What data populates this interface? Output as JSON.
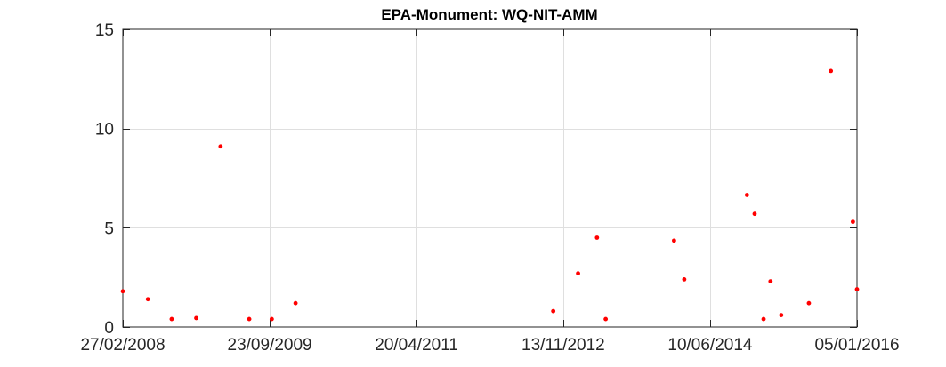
{
  "chart_data": {
    "type": "scatter",
    "title": "EPA-Monument: WQ-NIT-AMM",
    "xlabel": "",
    "ylabel": "",
    "x_axis_type": "date",
    "xlim": [
      "2008-02-27",
      "2016-01-05"
    ],
    "ylim": [
      0,
      15
    ],
    "x_ticks": [
      "2008-02-27",
      "2009-09-23",
      "2011-04-20",
      "2012-11-13",
      "2014-06-10",
      "2016-01-05"
    ],
    "x_tick_labels": [
      "27/02/2008",
      "23/09/2009",
      "20/04/2011",
      "13/11/2012",
      "10/06/2014",
      "05/01/2016"
    ],
    "y_ticks": [
      0,
      5,
      10,
      15
    ],
    "y_tick_labels": [
      "0",
      "5",
      "10",
      "15"
    ],
    "grid": true,
    "marker_color": "#ff0000",
    "series": [
      {
        "points": [
          {
            "x": "2008-02-27",
            "y": 1.8
          },
          {
            "x": "2008-06-04",
            "y": 1.4
          },
          {
            "x": "2008-09-05",
            "y": 0.4
          },
          {
            "x": "2008-12-10",
            "y": 0.45
          },
          {
            "x": "2009-03-15",
            "y": 9.1
          },
          {
            "x": "2009-07-05",
            "y": 0.4
          },
          {
            "x": "2009-10-01",
            "y": 0.4
          },
          {
            "x": "2010-01-02",
            "y": 1.2
          },
          {
            "x": "2012-10-05",
            "y": 0.8
          },
          {
            "x": "2013-01-10",
            "y": 2.7
          },
          {
            "x": "2013-03-25",
            "y": 4.5
          },
          {
            "x": "2013-04-28",
            "y": 0.4
          },
          {
            "x": "2014-01-20",
            "y": 4.35
          },
          {
            "x": "2014-03-01",
            "y": 2.4
          },
          {
            "x": "2014-11-01",
            "y": 6.65
          },
          {
            "x": "2014-12-01",
            "y": 5.7
          },
          {
            "x": "2015-01-05",
            "y": 0.4
          },
          {
            "x": "2015-02-01",
            "y": 2.3
          },
          {
            "x": "2015-03-15",
            "y": 0.6
          },
          {
            "x": "2015-07-01",
            "y": 1.2
          },
          {
            "x": "2015-09-25",
            "y": 12.9
          },
          {
            "x": "2015-12-20",
            "y": 5.3
          },
          {
            "x": "2016-01-05",
            "y": 1.9
          }
        ]
      }
    ]
  }
}
